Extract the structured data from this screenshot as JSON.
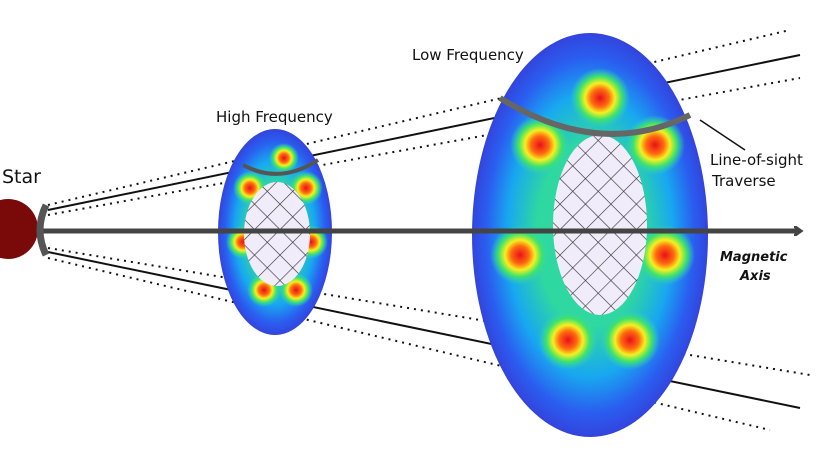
{
  "labels": {
    "star": "Star",
    "high_frequency": "High Frequency",
    "low_frequency": "Low Frequency",
    "line_of_sight": [
      "Line-of-sight",
      "Traverse"
    ],
    "magnetic_axis": [
      "Magnetic",
      "Axis"
    ]
  }
}
